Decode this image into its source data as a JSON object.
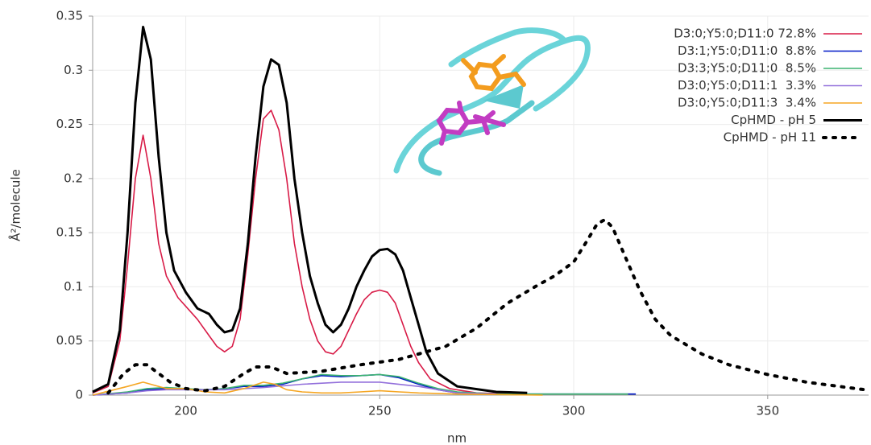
{
  "chart_data": {
    "type": "line",
    "x_label": "nm",
    "y_label": "Å²/molecule",
    "xlim": [
      176,
      376
    ],
    "ylim": [
      0,
      0.35
    ],
    "xticks": [
      200,
      250,
      300,
      350
    ],
    "yticks": [
      0,
      0.05,
      0.1,
      0.15,
      0.2,
      0.25,
      0.3,
      0.35
    ],
    "grid": true,
    "legend": "top-right",
    "series": [
      {
        "name": "D3:0;Y5:0;D11:0 72.8%",
        "color": "#d81b47",
        "dash": "solid",
        "x": [
          176,
          180,
          183,
          185,
          187,
          189,
          191,
          193,
          195,
          198,
          200,
          203,
          206,
          208,
          210,
          212,
          214,
          216,
          218,
          220,
          222,
          224,
          226,
          228,
          230,
          232,
          234,
          236,
          238,
          240,
          242,
          244,
          246,
          248,
          250,
          252,
          254,
          256,
          258,
          260,
          263,
          268,
          275,
          285
        ],
        "values": [
          0.002,
          0.008,
          0.05,
          0.12,
          0.2,
          0.24,
          0.2,
          0.14,
          0.11,
          0.09,
          0.082,
          0.07,
          0.055,
          0.045,
          0.04,
          0.045,
          0.07,
          0.13,
          0.2,
          0.255,
          0.263,
          0.245,
          0.2,
          0.14,
          0.1,
          0.07,
          0.05,
          0.04,
          0.038,
          0.045,
          0.06,
          0.075,
          0.088,
          0.095,
          0.097,
          0.095,
          0.085,
          0.065,
          0.045,
          0.03,
          0.015,
          0.006,
          0.002,
          0.001
        ]
      },
      {
        "name": "D3:1;Y5:0;D11:0  8.8%",
        "color": "#0018c8",
        "dash": "solid",
        "x": [
          176,
          185,
          190,
          195,
          200,
          205,
          210,
          215,
          220,
          225,
          230,
          235,
          240,
          245,
          250,
          255,
          260,
          265,
          270,
          280,
          290,
          300,
          316
        ],
        "values": [
          0,
          0.002,
          0.005,
          0.006,
          0.005,
          0.005,
          0.006,
          0.008,
          0.008,
          0.01,
          0.015,
          0.018,
          0.017,
          0.018,
          0.019,
          0.016,
          0.01,
          0.005,
          0.002,
          0.001,
          0.001,
          0.001,
          0.001
        ]
      },
      {
        "name": "D3:3;Y5:0;D11:0  8.5%",
        "color": "#3cb371",
        "dash": "solid",
        "x": [
          176,
          185,
          190,
          195,
          200,
          205,
          210,
          215,
          220,
          225,
          230,
          235,
          240,
          245,
          250,
          255,
          260,
          265,
          270,
          280,
          290,
          300,
          314
        ],
        "values": [
          0,
          0.003,
          0.006,
          0.007,
          0.006,
          0.005,
          0.006,
          0.009,
          0.009,
          0.011,
          0.015,
          0.019,
          0.018,
          0.018,
          0.019,
          0.017,
          0.011,
          0.006,
          0.003,
          0.001,
          0.001,
          0.001,
          0.001
        ]
      },
      {
        "name": "D3:0;Y5:0;D11:1  3.3%",
        "color": "#9370db",
        "dash": "solid",
        "x": [
          176,
          185,
          190,
          195,
          200,
          210,
          220,
          230,
          240,
          250,
          260,
          270,
          280
        ],
        "values": [
          0,
          0.002,
          0.004,
          0.005,
          0.005,
          0.005,
          0.007,
          0.01,
          0.012,
          0.012,
          0.008,
          0.002,
          0.001
        ]
      },
      {
        "name": "D3:0;Y5:0;D11:3  3.4%",
        "color": "#f5a623",
        "dash": "solid",
        "x": [
          176,
          185,
          189,
          192,
          195,
          200,
          205,
          210,
          215,
          220,
          223,
          226,
          230,
          235,
          240,
          245,
          250,
          255,
          260,
          270,
          292
        ],
        "values": [
          0,
          0.008,
          0.012,
          0.009,
          0.006,
          0.006,
          0.003,
          0.002,
          0.006,
          0.012,
          0.01,
          0.005,
          0.003,
          0.002,
          0.002,
          0.003,
          0.004,
          0.003,
          0.002,
          0.001,
          0
        ]
      },
      {
        "name": "CpHMD - pH 5",
        "color": "#000000",
        "dash": "solid",
        "x": [
          176,
          180,
          183,
          185,
          187,
          189,
          191,
          193,
          195,
          197,
          200,
          203,
          206,
          208,
          210,
          212,
          214,
          216,
          218,
          220,
          222,
          224,
          226,
          228,
          230,
          232,
          234,
          236,
          238,
          240,
          242,
          244,
          246,
          248,
          250,
          252,
          254,
          256,
          258,
          260,
          262,
          265,
          270,
          280,
          288
        ],
        "values": [
          0.003,
          0.01,
          0.06,
          0.15,
          0.27,
          0.34,
          0.31,
          0.22,
          0.15,
          0.115,
          0.095,
          0.08,
          0.075,
          0.065,
          0.058,
          0.06,
          0.08,
          0.14,
          0.22,
          0.285,
          0.31,
          0.305,
          0.27,
          0.2,
          0.15,
          0.11,
          0.085,
          0.065,
          0.058,
          0.065,
          0.08,
          0.1,
          0.115,
          0.128,
          0.134,
          0.135,
          0.13,
          0.115,
          0.09,
          0.065,
          0.04,
          0.02,
          0.008,
          0.003,
          0.002
        ]
      },
      {
        "name": "CpHMD - pH 11",
        "color": "#000000",
        "dash": "dotted",
        "x": [
          180,
          184,
          187,
          190,
          193,
          196,
          200,
          205,
          210,
          215,
          218,
          222,
          226,
          235,
          245,
          255,
          260,
          267,
          275,
          283,
          290,
          295,
          300,
          303,
          306,
          308,
          310,
          313,
          317,
          321,
          325,
          333,
          340,
          350,
          360,
          375
        ],
        "values": [
          0.002,
          0.02,
          0.028,
          0.028,
          0.02,
          0.012,
          0.006,
          0.004,
          0.008,
          0.02,
          0.026,
          0.026,
          0.02,
          0.022,
          0.028,
          0.033,
          0.038,
          0.045,
          0.062,
          0.085,
          0.1,
          0.11,
          0.123,
          0.14,
          0.158,
          0.162,
          0.155,
          0.13,
          0.097,
          0.07,
          0.055,
          0.038,
          0.028,
          0.019,
          0.012,
          0.005
        ]
      }
    ]
  }
}
